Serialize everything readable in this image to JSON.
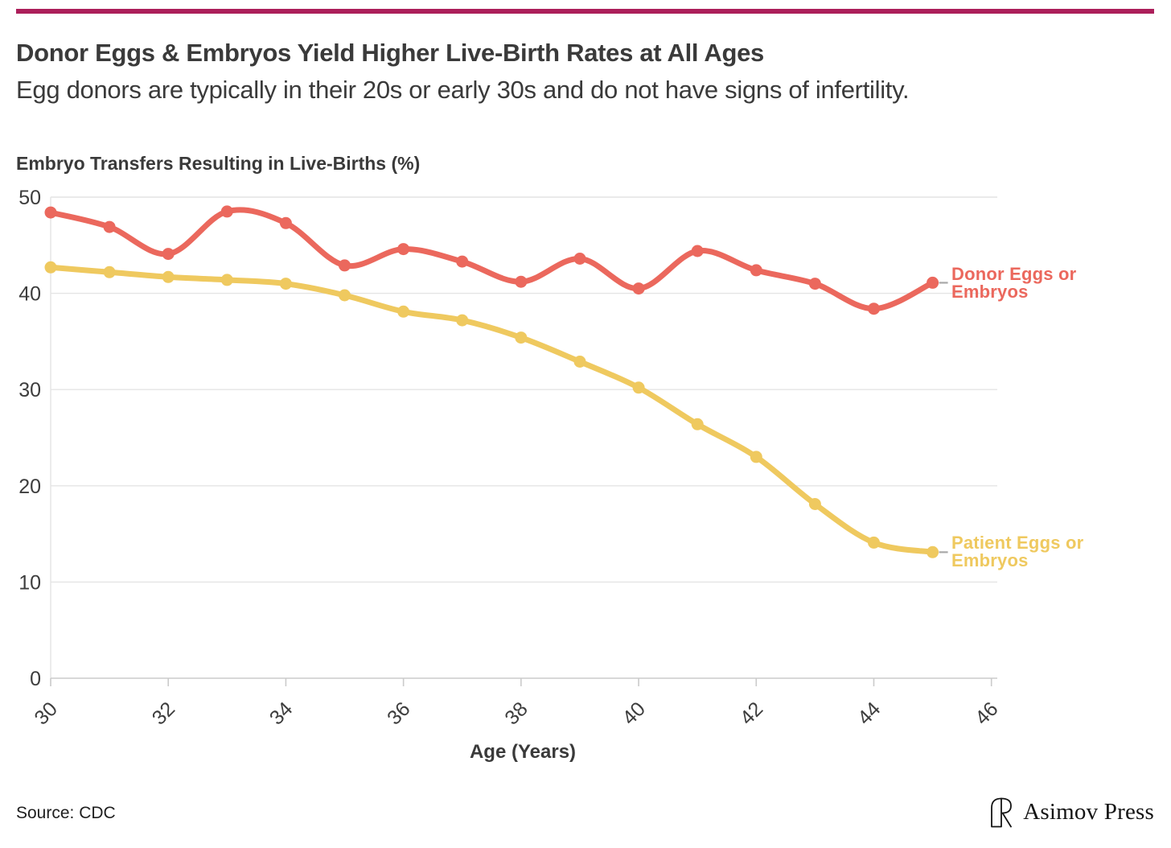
{
  "accent_color": "#AC1F5A",
  "header": {
    "title": "Donor Eggs & Embryos Yield Higher Live-Birth Rates at All Ages",
    "subtitle": "Egg donors are typically in their 20s or early 30s and do not have signs of infertility."
  },
  "chart_data": {
    "type": "line",
    "title": "Embryo Transfers Resulting in Live-Births (%)",
    "xlabel": "Age (Years)",
    "ylabel": "",
    "x": [
      30,
      31,
      32,
      33,
      34,
      35,
      36,
      37,
      38,
      39,
      40,
      41,
      42,
      43,
      44,
      45
    ],
    "series": [
      {
        "name": "Donor Eggs or Embryos",
        "color": "#EB685D",
        "values": [
          48.4,
          46.9,
          44.1,
          48.5,
          47.3,
          42.9,
          44.6,
          43.3,
          41.2,
          43.6,
          40.5,
          44.4,
          42.4,
          41.0,
          38.4,
          41.1
        ]
      },
      {
        "name": "Patient Eggs or Embryos",
        "color": "#EFC95F",
        "values": [
          42.7,
          42.2,
          41.7,
          41.4,
          41.0,
          39.8,
          38.1,
          37.2,
          35.4,
          32.9,
          30.2,
          26.4,
          23.0,
          18.1,
          14.1,
          13.1
        ]
      }
    ],
    "xticks": [
      30,
      32,
      34,
      36,
      38,
      40,
      42,
      44,
      46
    ],
    "yticks": [
      0,
      10,
      20,
      30,
      40,
      50
    ],
    "xlim": [
      30,
      46.1
    ],
    "ylim": [
      0,
      50
    ],
    "grid": true,
    "legend_position": "right of line ends"
  },
  "footer": {
    "source": "Source: CDC",
    "brand": "Asimov Press",
    "logo": "asimov-press-arch-logo"
  }
}
